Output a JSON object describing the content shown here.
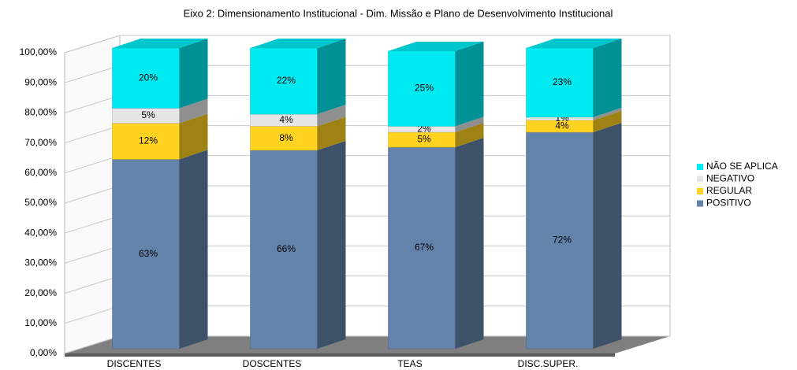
{
  "chart_data": {
    "type": "stacked_bar_3d",
    "title": "Eixo 2: Dimensionamento Institucional - Dim. Missão e Plano de Desenvolvimento Institucional",
    "categories": [
      "DISCENTES",
      "DOSCENTES",
      "TEAS",
      "DISC.SUPER."
    ],
    "series": [
      {
        "name": "POSITIVO",
        "color": "#6383aa",
        "values": [
          63,
          66,
          67,
          72
        ],
        "value_labels": [
          "63%",
          "66%",
          "67%",
          "72%"
        ]
      },
      {
        "name": "REGULAR",
        "color": "#ffd320",
        "values": [
          12,
          8,
          5,
          4
        ],
        "value_labels": [
          "12%",
          "8%",
          "5%",
          "4%"
        ]
      },
      {
        "name": "NEGATIVO",
        "color": "#e6e6e6",
        "values": [
          5,
          4,
          2,
          1
        ],
        "value_labels": [
          "5%",
          "4%",
          "2%",
          "1%"
        ]
      },
      {
        "name": "NÃO SE APLICA",
        "color": "#00eaf2",
        "values": [
          20,
          22,
          25,
          23
        ],
        "value_labels": [
          "20%",
          "22%",
          "25%",
          "23%"
        ]
      }
    ],
    "ylim": [
      0,
      100
    ],
    "yticks": [
      {
        "value": 0,
        "label": "0,00%"
      },
      {
        "value": 10,
        "label": "10,00%"
      },
      {
        "value": 20,
        "label": "20,00%"
      },
      {
        "value": 30,
        "label": "30,00%"
      },
      {
        "value": 40,
        "label": "40,00%"
      },
      {
        "value": 50,
        "label": "50,00%"
      },
      {
        "value": 60,
        "label": "60,00%"
      },
      {
        "value": 70,
        "label": "70,00%"
      },
      {
        "value": 80,
        "label": "80,00%"
      },
      {
        "value": 90,
        "label": "90,00%"
      },
      {
        "value": 100,
        "label": "100,00%"
      }
    ],
    "grid": true,
    "legend": "right"
  }
}
